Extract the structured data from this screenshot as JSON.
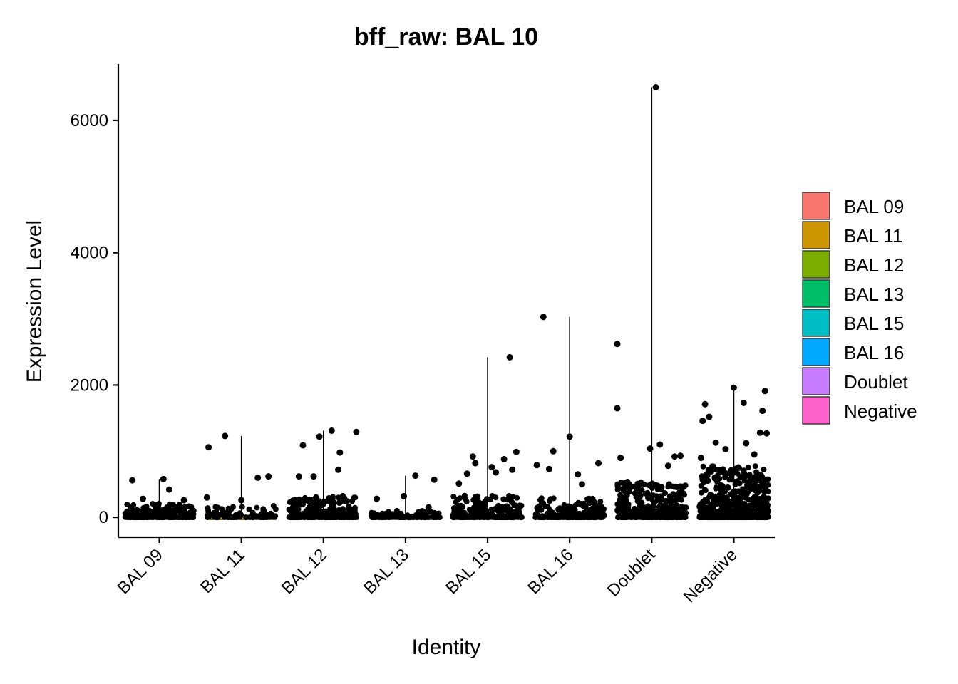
{
  "chart_data": {
    "type": "violin",
    "title": "bff_raw: BAL 10",
    "xlabel": "Identity",
    "ylabel": "Expression Level",
    "ylim": [
      -300,
      6850
    ],
    "yticks": [
      0,
      2000,
      4000,
      6000
    ],
    "categories": [
      "BAL 09",
      "BAL 11",
      "BAL 12",
      "BAL 13",
      "BAL 15",
      "BAL 16",
      "Doublet",
      "Negative"
    ],
    "max_values": [
      580,
      1230,
      1310,
      630,
      2420,
      3030,
      6500,
      1960
    ],
    "colors": [
      "#F8766D",
      "#CD9600",
      "#7CAE00",
      "#00BE67",
      "#00BFC4",
      "#00A9FF",
      "#C77CFF",
      "#FF61CC"
    ],
    "point_color": "#000000",
    "legend": {
      "position": "right",
      "entries": [
        "BAL 09",
        "BAL 11",
        "BAL 12",
        "BAL 13",
        "BAL 15",
        "BAL 16",
        "Doublet",
        "Negative"
      ]
    },
    "outliers": [
      {
        "series": "BAL 09",
        "points": [
          [
            -0.33,
            560
          ],
          [
            0.05,
            580
          ],
          [
            -0.2,
            280
          ],
          [
            0.3,
            260
          ],
          [
            0.12,
            420
          ]
        ]
      },
      {
        "series": "BAL 11",
        "points": [
          [
            -0.4,
            1060
          ],
          [
            -0.2,
            1230
          ],
          [
            0.2,
            600
          ],
          [
            0.33,
            620
          ],
          [
            -0.42,
            300
          ],
          [
            0,
            260
          ]
        ]
      },
      {
        "series": "BAL 12",
        "points": [
          [
            -0.05,
            1220
          ],
          [
            0.1,
            1310
          ],
          [
            0.4,
            1290
          ],
          [
            0.2,
            980
          ],
          [
            -0.25,
            1090
          ],
          [
            0.18,
            720
          ],
          [
            -0.3,
            620
          ],
          [
            -0.12,
            620
          ]
        ]
      },
      {
        "series": "BAL 13",
        "points": [
          [
            0.12,
            630
          ],
          [
            0.35,
            570
          ],
          [
            -0.02,
            320
          ],
          [
            -0.35,
            280
          ],
          [
            0.28,
            150
          ]
        ]
      },
      {
        "series": "BAL 15",
        "points": [
          [
            0.27,
            2420
          ],
          [
            0.35,
            990
          ],
          [
            0.2,
            880
          ],
          [
            -0.18,
            920
          ],
          [
            -0.15,
            820
          ],
          [
            0.05,
            760
          ],
          [
            0.3,
            720
          ],
          [
            -0.35,
            510
          ],
          [
            -0.25,
            660
          ],
          [
            0.1,
            680
          ]
        ]
      },
      {
        "series": "BAL 16",
        "points": [
          [
            -0.32,
            3030
          ],
          [
            0,
            1220
          ],
          [
            -0.4,
            790
          ],
          [
            -0.2,
            1000
          ],
          [
            0.1,
            650
          ],
          [
            0.35,
            820
          ],
          [
            -0.25,
            730
          ],
          [
            0.15,
            500
          ]
        ]
      },
      {
        "series": "Doublet",
        "points": [
          [
            0.05,
            6500
          ],
          [
            -0.42,
            2620
          ],
          [
            -0.42,
            1650
          ],
          [
            0.1,
            1100
          ],
          [
            -0.02,
            1040
          ],
          [
            -0.38,
            900
          ],
          [
            0.35,
            930
          ],
          [
            0.28,
            920
          ],
          [
            0.2,
            780
          ]
        ]
      },
      {
        "series": "Negative",
        "points": [
          [
            0,
            1960
          ],
          [
            0.38,
            1910
          ],
          [
            0.12,
            1730
          ],
          [
            -0.35,
            1710
          ],
          [
            0.35,
            1610
          ],
          [
            -0.3,
            1520
          ],
          [
            -0.38,
            1460
          ],
          [
            0.32,
            1280
          ],
          [
            0.4,
            1270
          ],
          [
            -0.22,
            1130
          ],
          [
            0.15,
            1120
          ],
          [
            -0.1,
            1030
          ],
          [
            0.25,
            950
          ],
          [
            -0.4,
            900
          ]
        ]
      }
    ]
  }
}
